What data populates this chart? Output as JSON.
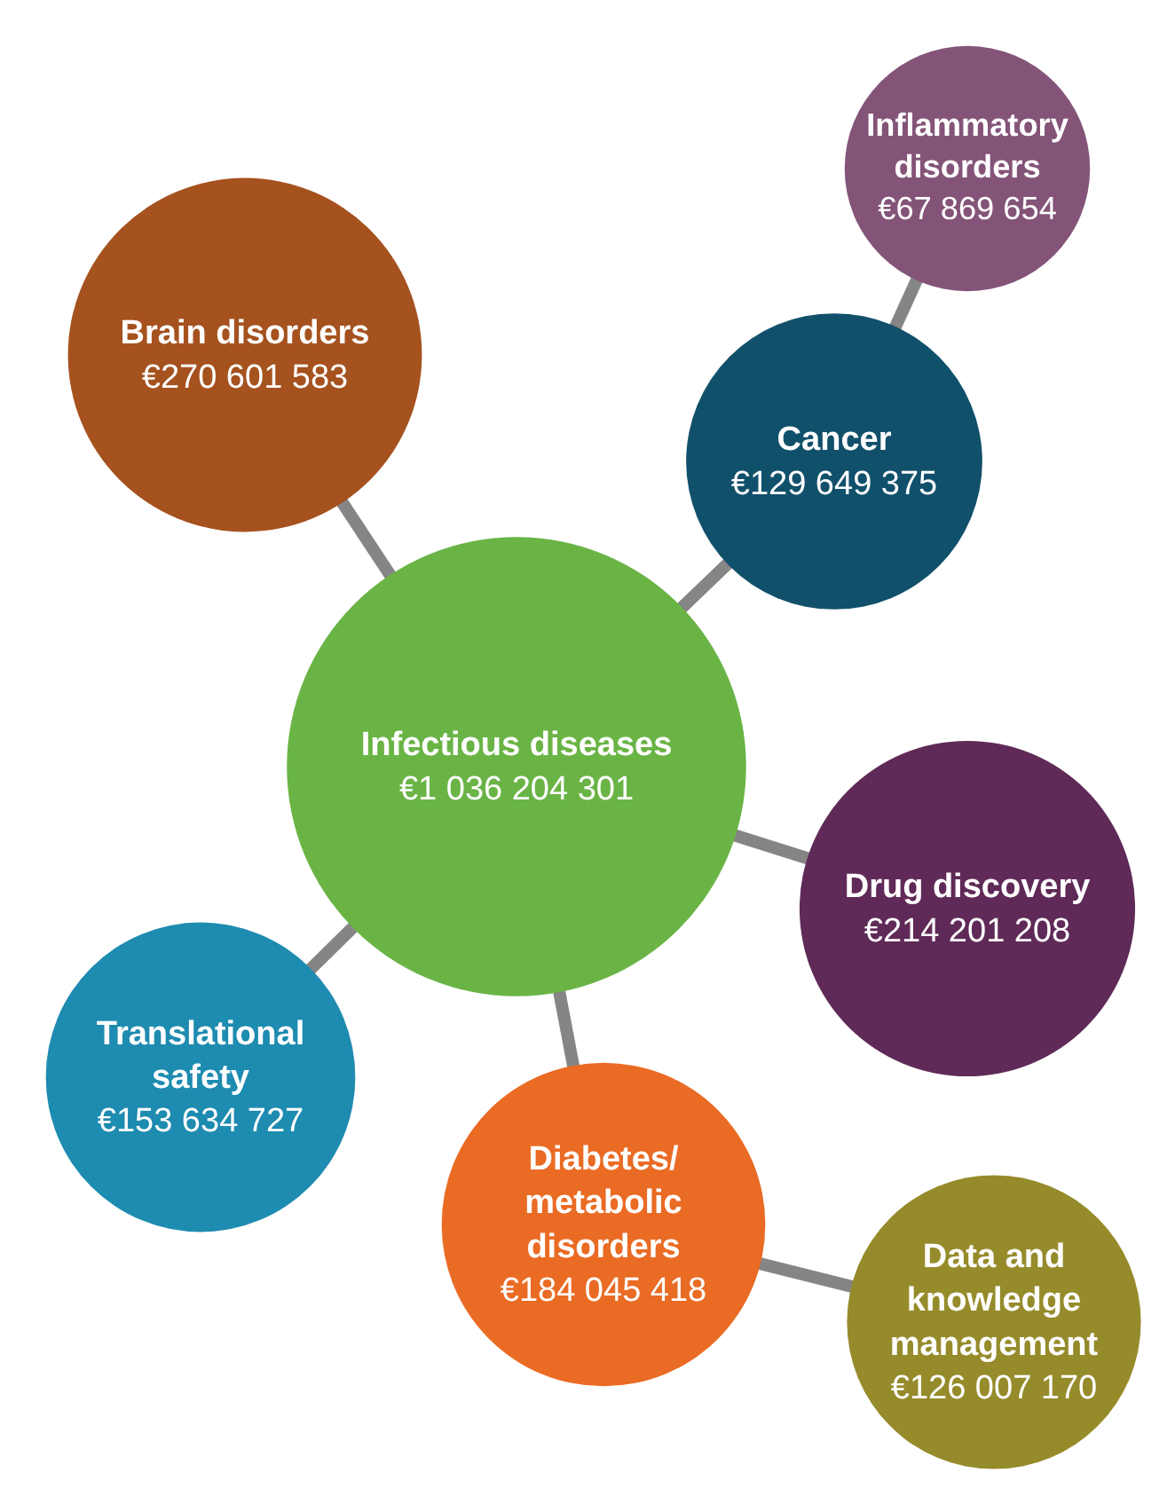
{
  "chart_data": {
    "type": "other",
    "categories": [
      "Brain disorders",
      "Inflammatory\ndisorders",
      "Cancer",
      "Infectious diseases",
      "Drug discovery",
      "Translational\nsafety",
      "Diabetes/\nmetabolic\ndisorders",
      "Data and\nknowledge\nmanagement"
    ],
    "values": [
      270601583,
      67869654,
      129649375,
      1036204301,
      214201208,
      153634727,
      184045418,
      126007170
    ],
    "value_labels": [
      "€270 601 583",
      "€67 869 654",
      "€129 649 375",
      "€1 036 204 301",
      "€214 201 208",
      "€153 634 727",
      "€184 045 418",
      "€126 007 170"
    ],
    "colors": [
      "#a5521f",
      "#845478",
      "#11506b",
      "#6ab446",
      "#5f2a57",
      "#1e8bb0",
      "#ea6b24",
      "#968b2b"
    ]
  }
}
